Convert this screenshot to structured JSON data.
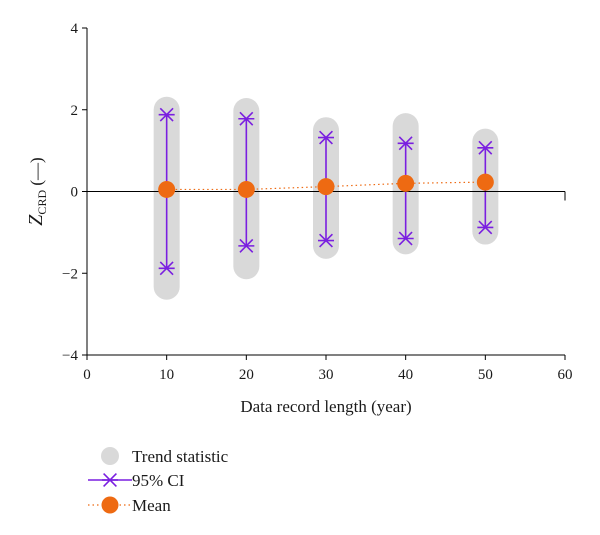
{
  "chart_data": {
    "type": "scatter",
    "xlabel": "Data record length (year)",
    "ylabel": {
      "main": "Z",
      "sub": "CRD",
      "unit": " (—)"
    },
    "xlim": [
      0,
      60
    ],
    "ylim": [
      -4,
      4
    ],
    "xticks": [
      "0",
      "10",
      "20",
      "30",
      "40",
      "50",
      "60"
    ],
    "yticks": [
      "−4",
      "−2",
      "0",
      "2",
      "4"
    ],
    "categories": [
      10,
      20,
      30,
      40,
      50
    ],
    "trend_statistic_range": [
      {
        "x": 10,
        "min": -2.33,
        "max": 2.0
      },
      {
        "x": 20,
        "min": -1.83,
        "max": 1.97
      },
      {
        "x": 30,
        "min": -1.33,
        "max": 1.5
      },
      {
        "x": 40,
        "min": -1.22,
        "max": 1.6
      },
      {
        "x": 50,
        "min": -0.98,
        "max": 1.22
      }
    ],
    "series": [
      {
        "name": "Trend statistic",
        "marker": "circle",
        "color": "#d9d9d9"
      },
      {
        "name": "95% CI",
        "marker": "asterisk",
        "color": "#7a1fe0",
        "lower": [
          -1.88,
          -1.33,
          -1.2,
          -1.15,
          -0.88
        ],
        "upper": [
          1.88,
          1.78,
          1.32,
          1.18,
          1.07
        ]
      },
      {
        "name": "Mean",
        "marker": "circle",
        "color": "#ee6a12",
        "line": "dotted",
        "values": [
          0.05,
          0.05,
          0.12,
          0.2,
          0.23
        ]
      }
    ],
    "legend": {
      "placement": "bottom-left",
      "items": [
        "Trend statistic",
        "95% CI",
        "Mean"
      ]
    },
    "grid": false
  }
}
